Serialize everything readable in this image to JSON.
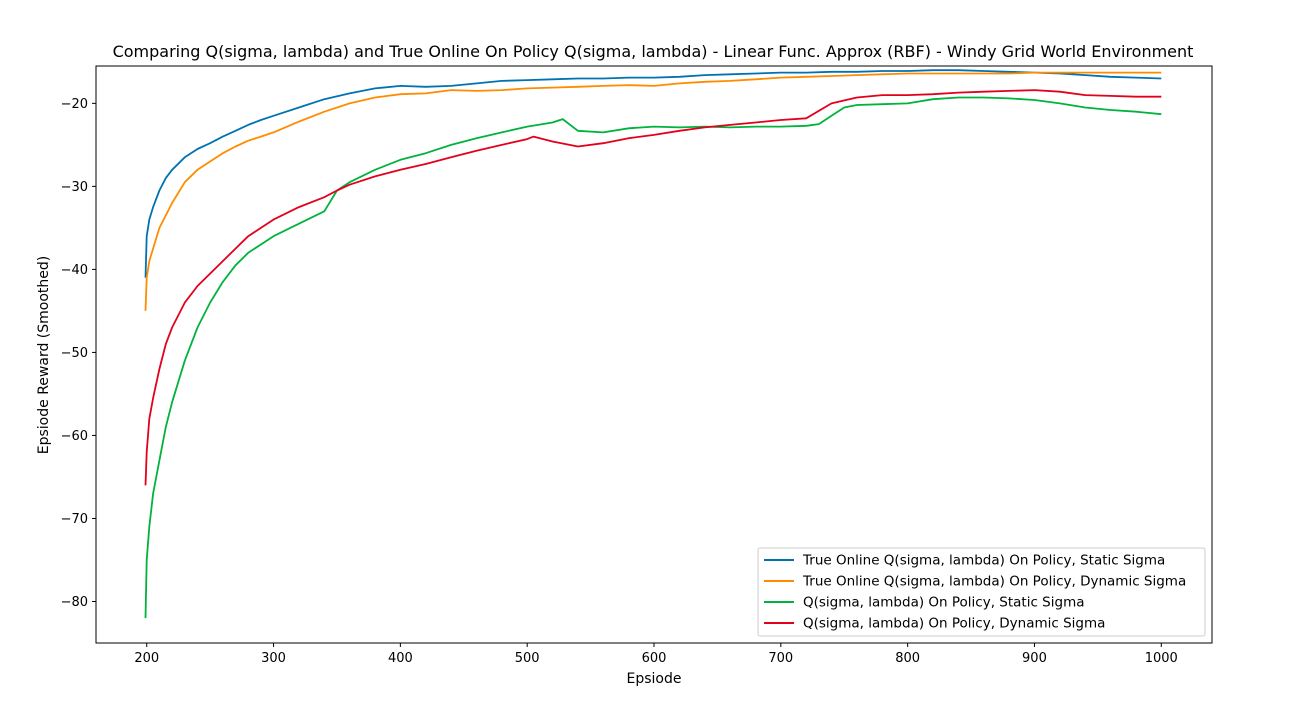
{
  "chart_data": {
    "type": "line",
    "title": "Comparing Q(sigma, lambda) and True Online On Policy Q(sigma, lambda) - Linear Func. Approx (RBF) - Windy Grid World Environment",
    "xlabel": "Epsiode",
    "ylabel": "Epsiode Reward (Smoothed)",
    "xlim": [
      160,
      1040
    ],
    "ylim": [
      -85,
      -15.5
    ],
    "xticks": [
      200,
      300,
      400,
      500,
      600,
      700,
      800,
      900,
      1000
    ],
    "yticks": [
      -80,
      -70,
      -60,
      -50,
      -40,
      -30,
      -20
    ],
    "legend_position": "lower-right",
    "series": [
      {
        "name": "True Online Q(sigma, lambda) On Policy, Static Sigma",
        "color": "#0072b2",
        "x": [
          199,
          200,
          202,
          205,
          210,
          215,
          220,
          230,
          240,
          250,
          260,
          270,
          280,
          290,
          300,
          320,
          340,
          360,
          380,
          400,
          420,
          440,
          460,
          480,
          500,
          520,
          540,
          560,
          580,
          600,
          620,
          640,
          660,
          680,
          700,
          720,
          740,
          760,
          780,
          800,
          820,
          840,
          860,
          880,
          900,
          920,
          940,
          960,
          980,
          1000
        ],
        "y": [
          -41,
          -36,
          -34,
          -32.5,
          -30.5,
          -29,
          -28,
          -26.5,
          -25.5,
          -24.8,
          -24,
          -23.3,
          -22.6,
          -22,
          -21.5,
          -20.5,
          -19.5,
          -18.8,
          -18.2,
          -17.9,
          -18,
          -17.9,
          -17.6,
          -17.3,
          -17.2,
          -17.1,
          -17.0,
          -17.0,
          -16.9,
          -16.9,
          -16.8,
          -16.6,
          -16.5,
          -16.4,
          -16.3,
          -16.3,
          -16.2,
          -16.2,
          -16.1,
          -16.1,
          -16.0,
          -16.0,
          -16.1,
          -16.2,
          -16.3,
          -16.4,
          -16.6,
          -16.8,
          -16.9,
          -17.0
        ]
      },
      {
        "name": "True Online Q(sigma, lambda) On Policy, Dynamic Sigma",
        "color": "#ff8c00",
        "x": [
          199,
          200,
          202,
          205,
          210,
          215,
          220,
          230,
          240,
          250,
          260,
          270,
          280,
          290,
          300,
          320,
          340,
          360,
          380,
          400,
          420,
          440,
          460,
          480,
          500,
          520,
          540,
          560,
          580,
          600,
          620,
          640,
          660,
          680,
          700,
          720,
          740,
          760,
          780,
          800,
          820,
          840,
          860,
          880,
          900,
          920,
          940,
          960,
          980,
          1000
        ],
        "y": [
          -45,
          -41,
          -39,
          -37.5,
          -35,
          -33.5,
          -32,
          -29.5,
          -28,
          -27,
          -26,
          -25.2,
          -24.5,
          -24,
          -23.5,
          -22.2,
          -21,
          -20,
          -19.3,
          -18.9,
          -18.8,
          -18.4,
          -18.5,
          -18.4,
          -18.2,
          -18.1,
          -18.0,
          -17.9,
          -17.8,
          -17.9,
          -17.6,
          -17.4,
          -17.3,
          -17.1,
          -16.9,
          -16.8,
          -16.7,
          -16.6,
          -16.5,
          -16.4,
          -16.4,
          -16.4,
          -16.4,
          -16.4,
          -16.3,
          -16.3,
          -16.3,
          -16.3,
          -16.3,
          -16.3
        ]
      },
      {
        "name": "Q(sigma, lambda) On Policy, Static Sigma",
        "color": "#00b33c",
        "x": [
          199,
          200,
          202,
          205,
          210,
          215,
          220,
          230,
          240,
          250,
          260,
          270,
          280,
          290,
          300,
          320,
          340,
          350,
          360,
          380,
          400,
          420,
          440,
          460,
          480,
          500,
          520,
          528,
          540,
          560,
          580,
          600,
          620,
          640,
          660,
          680,
          700,
          720,
          730,
          740,
          750,
          760,
          780,
          800,
          820,
          840,
          860,
          880,
          900,
          920,
          940,
          960,
          980,
          1000
        ],
        "y": [
          -82,
          -75,
          -71,
          -67,
          -63,
          -59,
          -56,
          -51,
          -47,
          -44,
          -41.5,
          -39.5,
          -38,
          -37,
          -36,
          -34.5,
          -33,
          -30.5,
          -29.5,
          -28,
          -26.8,
          -26,
          -25,
          -24.2,
          -23.5,
          -22.8,
          -22.3,
          -21.9,
          -23.3,
          -23.5,
          -23.0,
          -22.8,
          -22.9,
          -22.8,
          -22.9,
          -22.8,
          -22.8,
          -22.7,
          -22.5,
          -21.5,
          -20.5,
          -20.2,
          -20.1,
          -20.0,
          -19.5,
          -19.3,
          -19.3,
          -19.4,
          -19.6,
          -20.0,
          -20.5,
          -20.8,
          -21.0,
          -21.3
        ]
      },
      {
        "name": "Q(sigma, lambda) On Policy, Dynamic Sigma",
        "color": "#e3001b",
        "x": [
          199,
          200,
          202,
          205,
          210,
          215,
          220,
          230,
          240,
          250,
          260,
          270,
          280,
          290,
          300,
          320,
          340,
          350,
          360,
          380,
          400,
          420,
          440,
          460,
          480,
          500,
          505,
          520,
          540,
          560,
          580,
          600,
          620,
          640,
          660,
          680,
          700,
          720,
          740,
          760,
          780,
          800,
          820,
          840,
          860,
          880,
          900,
          920,
          940,
          960,
          980,
          1000
        ],
        "y": [
          -66,
          -62,
          -58,
          -55.5,
          -52,
          -49,
          -47,
          -44,
          -42,
          -40.5,
          -39,
          -37.5,
          -36,
          -35,
          -34,
          -32.5,
          -31.3,
          -30.5,
          -29.8,
          -28.8,
          -28,
          -27.3,
          -26.5,
          -25.7,
          -25,
          -24.3,
          -24.0,
          -24.6,
          -25.2,
          -24.8,
          -24.2,
          -23.8,
          -23.3,
          -22.9,
          -22.6,
          -22.3,
          -22.0,
          -21.8,
          -20.0,
          -19.3,
          -19.0,
          -19.0,
          -18.9,
          -18.7,
          -18.6,
          -18.5,
          -18.4,
          -18.6,
          -19.0,
          -19.1,
          -19.2,
          -19.2
        ]
      }
    ]
  }
}
